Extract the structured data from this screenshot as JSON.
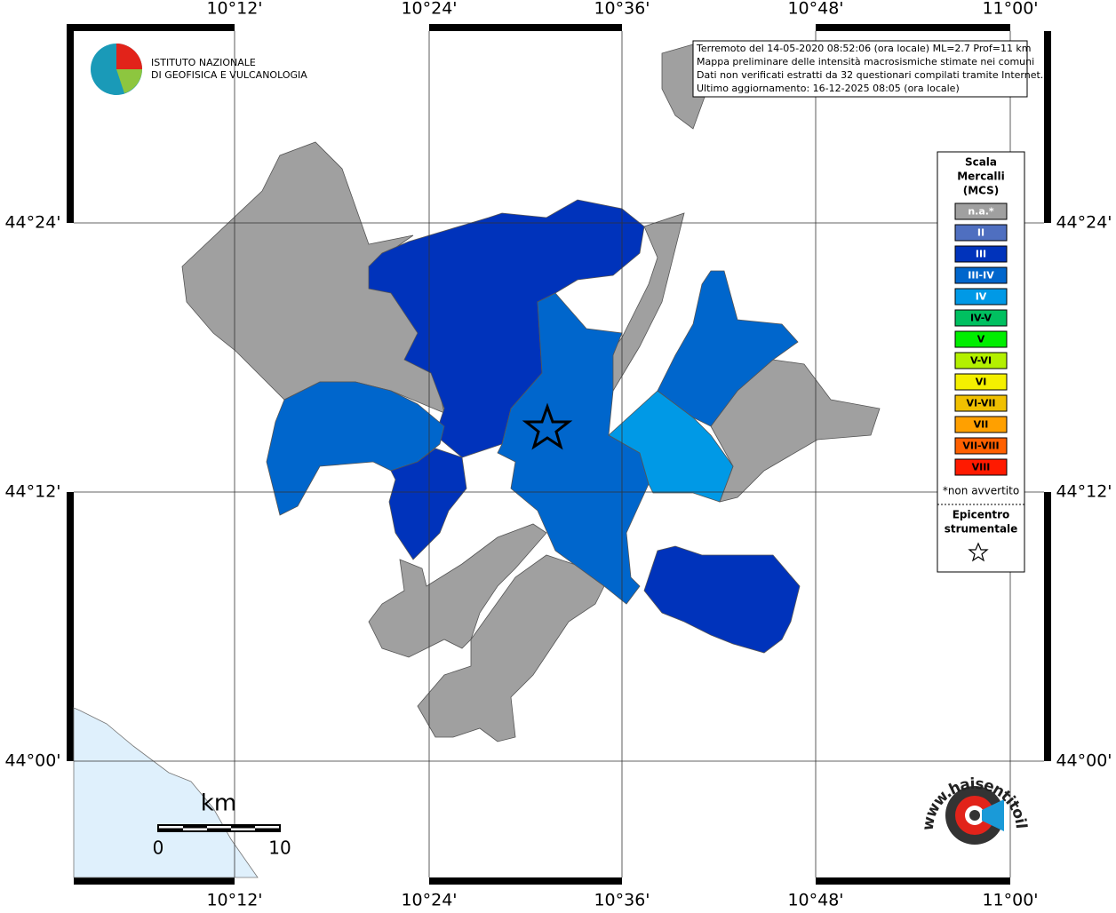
{
  "map": {
    "lon_labels": [
      "10°12'",
      "10°24'",
      "10°36'",
      "10°48'",
      "11°00'"
    ],
    "lat_labels": [
      "44°24'",
      "44°12'",
      "44°00'"
    ],
    "logo": {
      "line1": "ISTITUTO NAZIONALE",
      "line2": "DI GEOFISICA E VULCANOLOGIA"
    },
    "info": [
      "Terremoto del 14-05-2020 08:52:06 (ora locale) ML=2.7 Prof=11 km",
      "Mappa preliminare delle intensità macrosismiche stimate nei comuni",
      "Dati non verificati estratti da 32 questionari compilati tramite Internet.",
      "Ultimo aggiornamento: 16-12-2025 08:05 (ora locale)"
    ],
    "legend": {
      "title": [
        "Scala",
        "Mercalli",
        "(MCS)"
      ],
      "classes": [
        {
          "label": "n.a.*",
          "color": "#a0a0a0"
        },
        {
          "label": "II",
          "color": "#4f6fc0"
        },
        {
          "label": "III",
          "color": "#0033bb"
        },
        {
          "label": "III-IV",
          "color": "#0066cc"
        },
        {
          "label": "IV",
          "color": "#0099e6"
        },
        {
          "label": "IV-V",
          "color": "#00c060"
        },
        {
          "label": "V",
          "color": "#00ee00"
        },
        {
          "label": "V-VI",
          "color": "#b3f000"
        },
        {
          "label": "VI",
          "color": "#f4f000"
        },
        {
          "label": "VI-VII",
          "color": "#f0c000"
        },
        {
          "label": "VII",
          "color": "#ffa000"
        },
        {
          "label": "VII-VIII",
          "color": "#ff6000"
        },
        {
          "label": "VIII",
          "color": "#ff1a00"
        }
      ],
      "note": "*non avvertito",
      "epicenter": [
        "Epicentro",
        "strumentale"
      ]
    },
    "scale": {
      "unit": "km",
      "start": "0",
      "end": "10"
    },
    "site_logo": "www.haisentitoilterremoto.it"
  }
}
